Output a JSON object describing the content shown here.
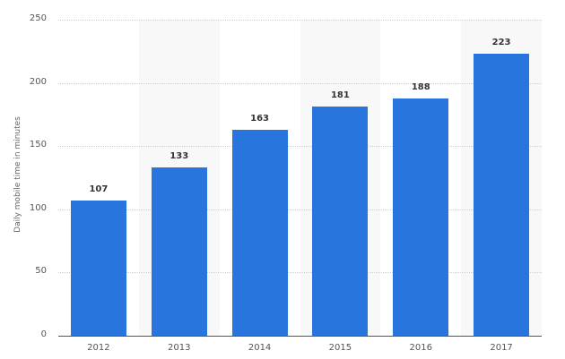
{
  "chart_data": {
    "type": "bar",
    "title": "",
    "xlabel": "",
    "ylabel": "Daily mobile time in minutes",
    "categories": [
      "2012",
      "2013",
      "2014",
      "2015",
      "2016",
      "2017"
    ],
    "values": [
      107,
      133,
      163,
      181,
      188,
      223
    ],
    "value_labels": [
      "107",
      "133",
      "163",
      "181",
      "188",
      "223"
    ],
    "ylim": [
      0,
      250
    ],
    "yticks": [
      "0",
      "50",
      "100",
      "150",
      "200",
      "250"
    ],
    "grid": true,
    "legend": "none",
    "bar_color": "#2876dd"
  }
}
